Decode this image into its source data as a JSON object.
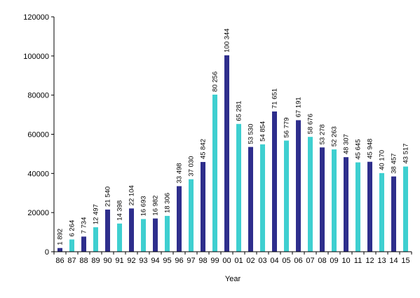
{
  "chart_data": {
    "type": "bar",
    "xlabel": "Year",
    "ylabel": "",
    "ylim": [
      0,
      120000
    ],
    "yticks": [
      "0",
      "20000",
      "40000",
      "60000",
      "80000",
      "100000",
      "120000"
    ],
    "grid": false,
    "colors": {
      "dark": "#2e2e8c",
      "light": "#3ecfd0"
    },
    "categories": [
      "86",
      "87",
      "88",
      "89",
      "90",
      "91",
      "92",
      "93",
      "94",
      "95",
      "96",
      "97",
      "98",
      "99",
      "00",
      "01",
      "02",
      "03",
      "04",
      "05",
      "06",
      "07",
      "08",
      "09",
      "10",
      "11",
      "12",
      "13",
      "14",
      "15"
    ],
    "values": [
      1892,
      6264,
      7734,
      12497,
      21540,
      14398,
      22104,
      16693,
      16982,
      18306,
      33498,
      37030,
      45842,
      80256,
      100344,
      65281,
      53530,
      54854,
      71651,
      56779,
      67191,
      58676,
      53278,
      52263,
      48307,
      45645,
      45948,
      40170,
      38457,
      43517
    ],
    "value_labels": [
      "1 892",
      "6 264",
      "7 734",
      "12 497",
      "21 540",
      "14 398",
      "22 104",
      "16 693",
      "16 982",
      "18 306",
      "33 498",
      "37 030",
      "45 842",
      "80 256",
      "100 344",
      "65 281",
      "53 530",
      "54 854",
      "71 651",
      "56 779",
      "67 191",
      "58 676",
      "53 278",
      "52 263",
      "48 307",
      "45 645",
      "45 948",
      "40 170",
      "38 457",
      "43 517"
    ],
    "bar_colors": [
      "dark",
      "light",
      "dark",
      "light",
      "dark",
      "light",
      "dark",
      "light",
      "dark",
      "light",
      "dark",
      "light",
      "dark",
      "light",
      "dark",
      "light",
      "dark",
      "light",
      "dark",
      "light",
      "dark",
      "light",
      "dark",
      "light",
      "dark",
      "light",
      "dark",
      "light",
      "dark",
      "light"
    ]
  }
}
